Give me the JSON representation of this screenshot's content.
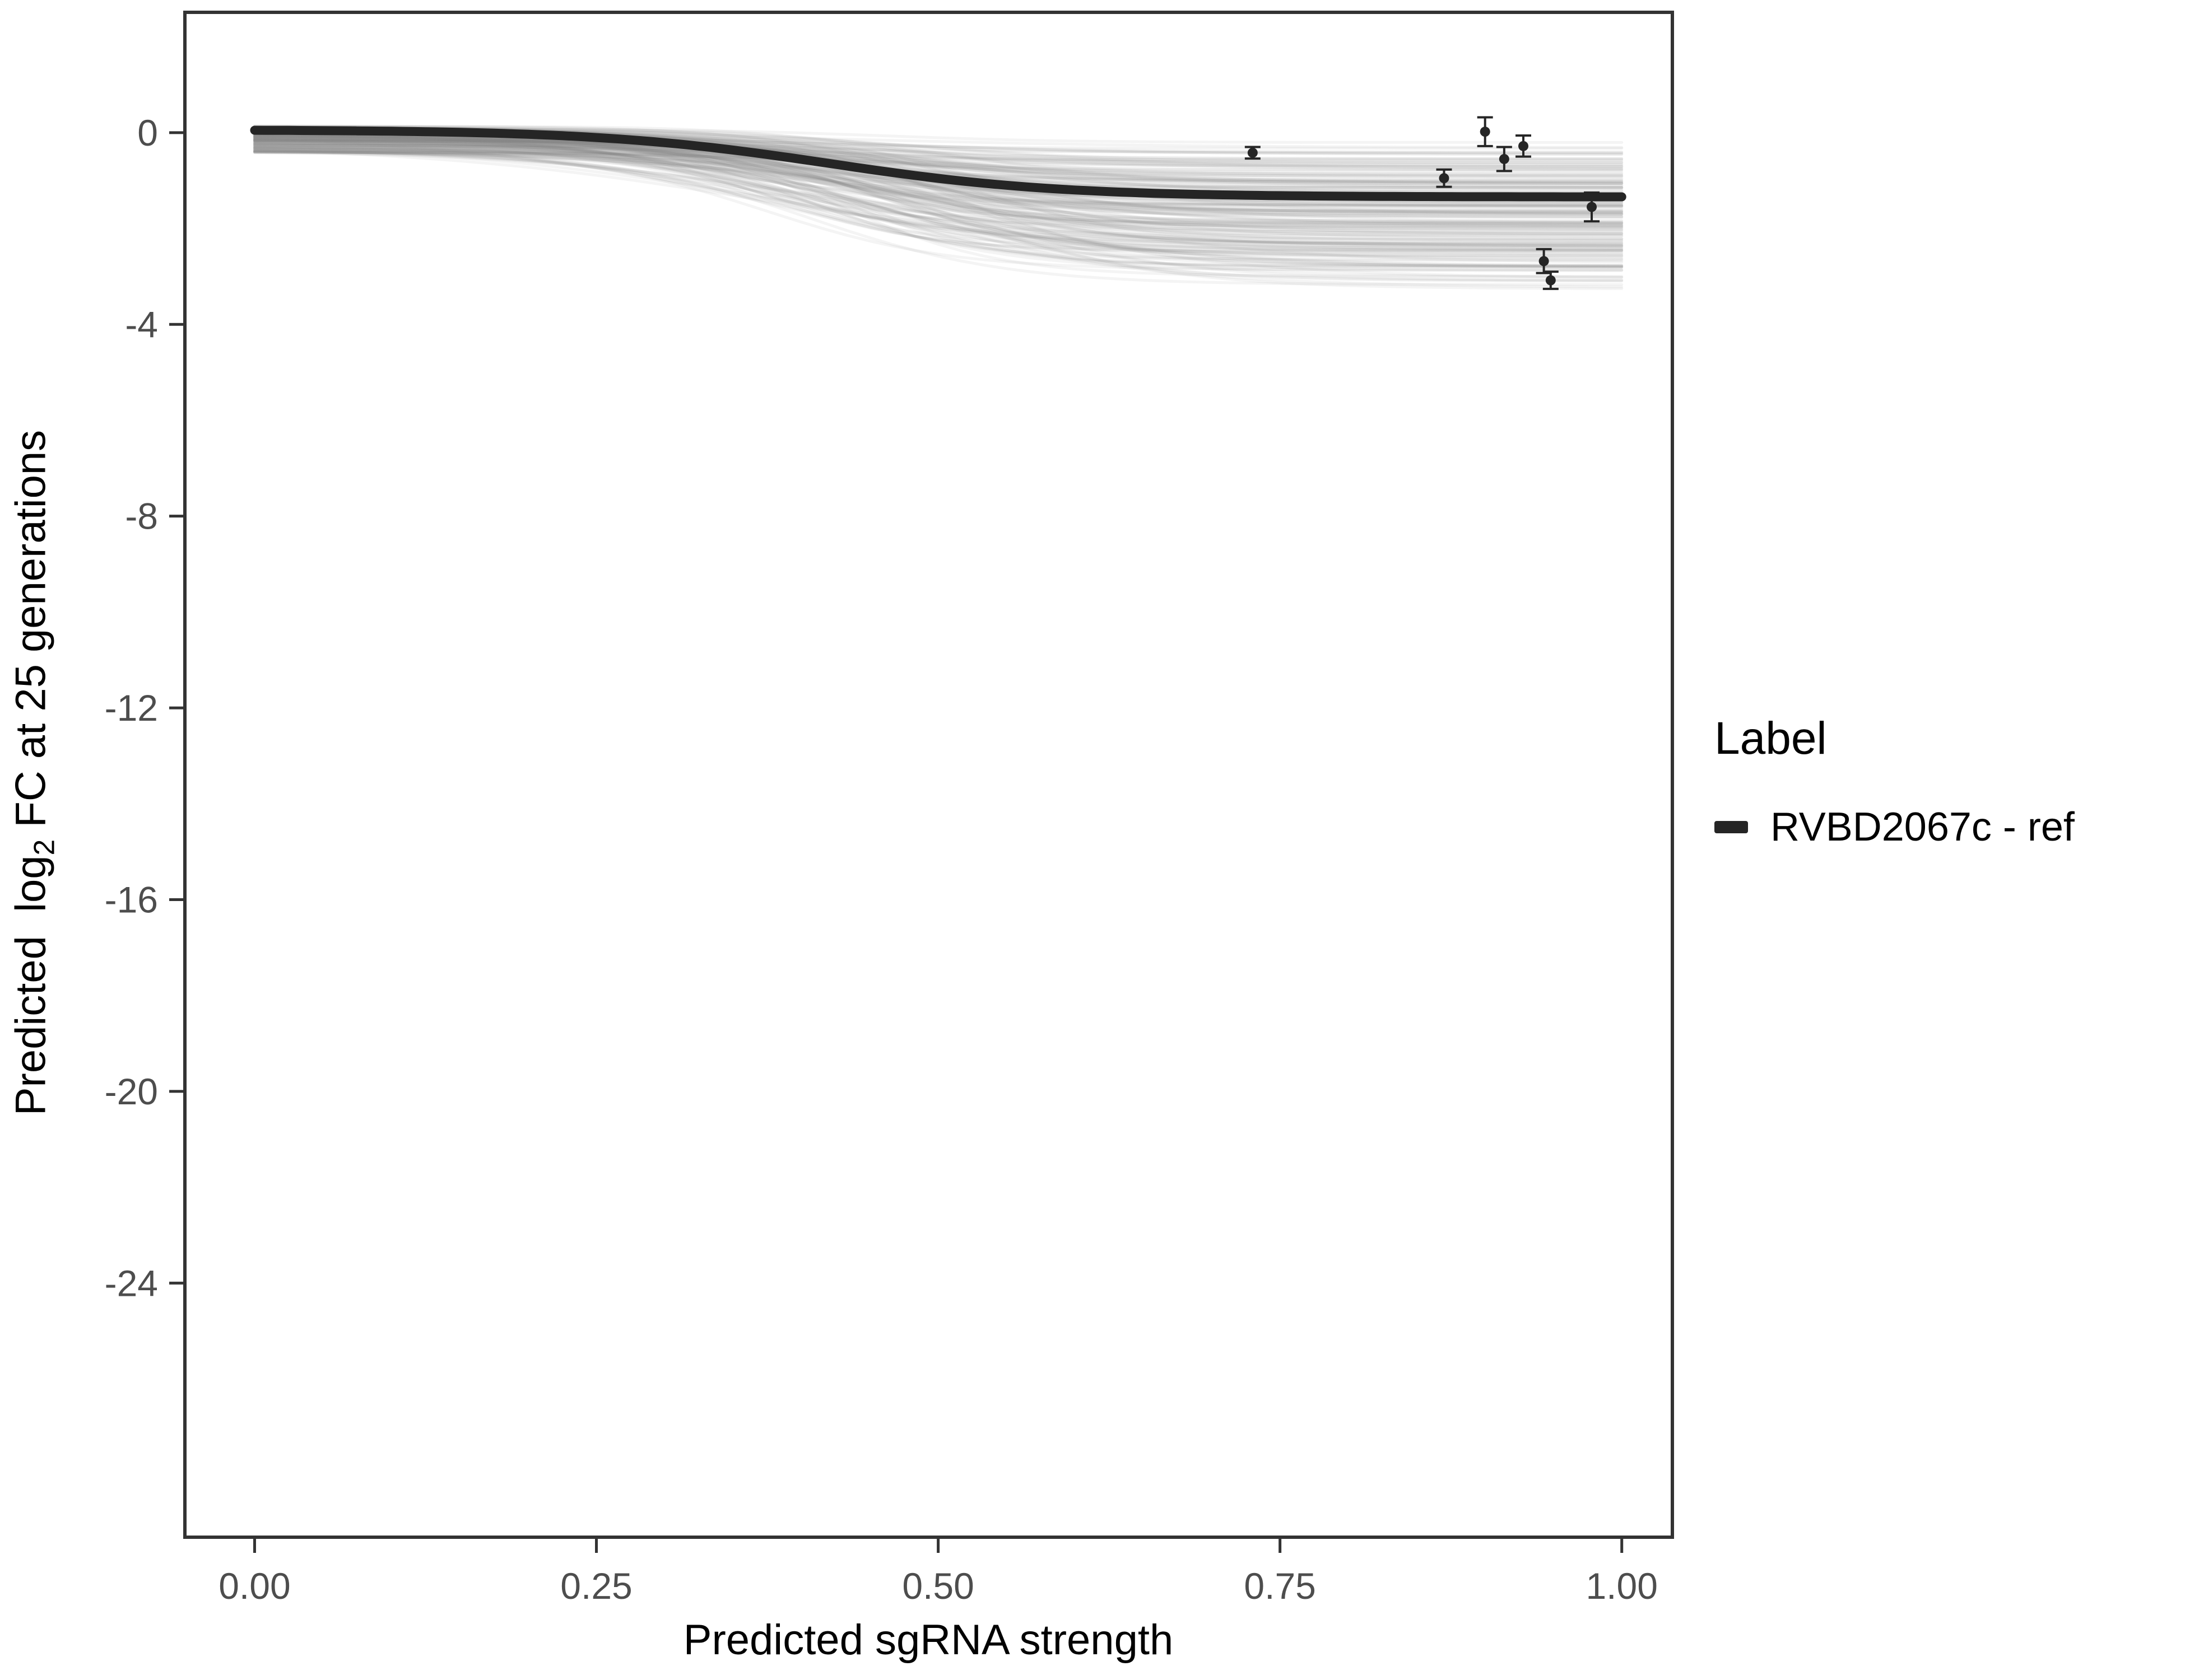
{
  "chart_data": {
    "type": "line",
    "title": "",
    "xlabel": "Predicted sgRNA strength",
    "ylabel": {
      "prefix": "Predicted  log",
      "sub": "2",
      "suffix": " FC at 25 generations"
    },
    "xlim": [
      -0.051,
      1.037
    ],
    "ylim": [
      -29.3,
      2.51
    ],
    "x_ticks": [
      0.0,
      0.25,
      0.5,
      0.75,
      1.0
    ],
    "x_tick_labels": [
      "0.00",
      "0.25",
      "0.50",
      "0.75",
      "1.00"
    ],
    "y_ticks": [
      0,
      -4,
      -8,
      -12,
      -16,
      -20,
      -24
    ],
    "y_tick_labels": [
      "0",
      "-4",
      "-8",
      "-12",
      "-16",
      "-20",
      "-24"
    ],
    "grid": "off",
    "legend_position": "right",
    "main_curve": {
      "name": "RVBD2067c - ref",
      "shape": "sigmoid",
      "start_y": 0.05,
      "plateau_depth": 1.4,
      "midpoint": 0.42,
      "steepness": 12,
      "color": "#252525",
      "stroke_width": 16
    },
    "posterior_draws": {
      "count": 190,
      "color": "#808080",
      "opacity": 0.09,
      "stroke_width": 5,
      "depth_range": [
        0.25,
        2.9
      ],
      "midpoint_range": [
        0.36,
        0.52
      ],
      "steepness_range": [
        8,
        18
      ],
      "start_y_range": [
        -0.42,
        0.14
      ],
      "seed": 42
    },
    "points": [
      {
        "x": 0.73,
        "y": -0.42,
        "err": 0.12
      },
      {
        "x": 0.87,
        "y": -0.95,
        "err": 0.18
      },
      {
        "x": 0.9,
        "y": 0.02,
        "err": 0.3
      },
      {
        "x": 0.914,
        "y": -0.55,
        "err": 0.25
      },
      {
        "x": 0.928,
        "y": -0.28,
        "err": 0.22
      },
      {
        "x": 0.943,
        "y": -2.68,
        "err": 0.25
      },
      {
        "x": 0.948,
        "y": -3.08,
        "err": 0.18
      },
      {
        "x": 0.978,
        "y": -1.55,
        "err": 0.3
      }
    ],
    "legend": {
      "title": "Label",
      "entries": [
        {
          "label": "RVBD2067c - ref",
          "color": "#252525"
        }
      ]
    },
    "panel": {
      "border_color": "#333333",
      "tick_color": "#333333",
      "tick_label_color": "#4d4d4d"
    }
  }
}
